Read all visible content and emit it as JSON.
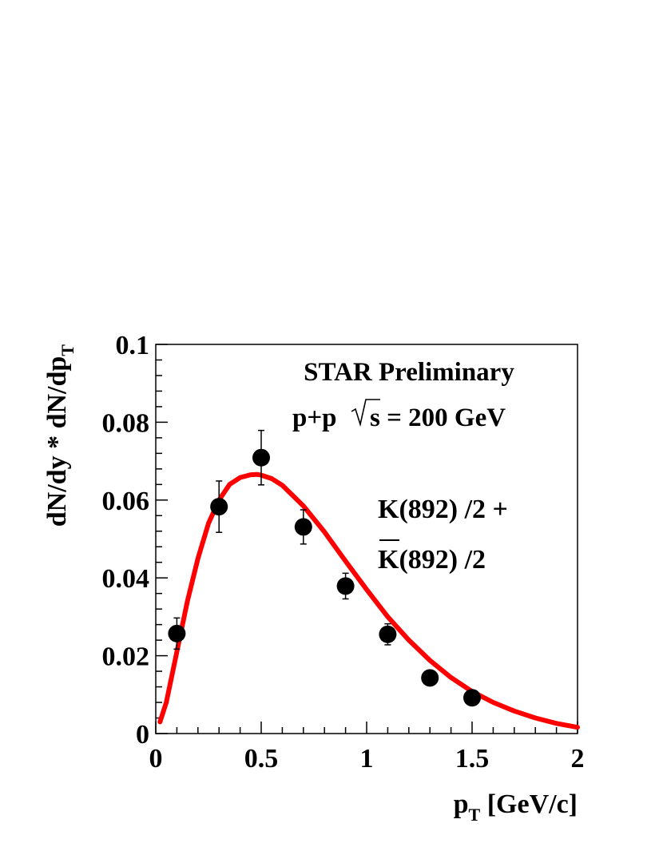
{
  "chart_data": {
    "type": "scatter",
    "title": "",
    "annotations": {
      "experiment": "STAR Preliminary",
      "system_prefix": "p+p",
      "energy": "s = 200 GeV",
      "particle_line1": "K(892) /2 +",
      "particle_line2": "K(892) /2"
    },
    "xlabel": {
      "main": "p",
      "sub": "T",
      "rest": " [GeV/c]"
    },
    "ylabel": {
      "main": "dN/dy * dN/dp",
      "sub": "T"
    },
    "xlim": [
      0,
      2
    ],
    "ylim": [
      0,
      0.1
    ],
    "x_ticks": [
      {
        "value": 0,
        "label": "0"
      },
      {
        "value": 0.5,
        "label": "0.5"
      },
      {
        "value": 1,
        "label": "1"
      },
      {
        "value": 1.5,
        "label": "1.5"
      },
      {
        "value": 2,
        "label": "2"
      }
    ],
    "y_ticks": [
      {
        "value": 0,
        "label": "0"
      },
      {
        "value": 0.02,
        "label": "0.02"
      },
      {
        "value": 0.04,
        "label": "0.04"
      },
      {
        "value": 0.06,
        "label": "0.06"
      },
      {
        "value": 0.08,
        "label": "0.08"
      },
      {
        "value": 0.1,
        "label": "0.1"
      }
    ],
    "series": [
      {
        "x": [
          0.1,
          0.3,
          0.5,
          0.7,
          0.9,
          1.1,
          1.3,
          1.5
        ],
        "y": [
          0.0257,
          0.0583,
          0.0709,
          0.0531,
          0.0379,
          0.0255,
          0.0143,
          0.0092
        ],
        "yerr": [
          0.004,
          0.0066,
          0.007,
          0.0044,
          0.0033,
          0.0027,
          0.001,
          0.0008
        ],
        "marker_color": "#000000"
      }
    ],
    "fit": {
      "x": [
        0.02,
        0.05,
        0.1,
        0.15,
        0.2,
        0.25,
        0.3,
        0.35,
        0.4,
        0.45,
        0.48,
        0.5,
        0.55,
        0.6,
        0.7,
        0.8,
        0.9,
        1.0,
        1.1,
        1.2,
        1.3,
        1.4,
        1.5,
        1.6,
        1.7,
        1.8,
        1.9,
        2.0
      ],
      "y": [
        0.003,
        0.008,
        0.021,
        0.034,
        0.045,
        0.054,
        0.06,
        0.064,
        0.0658,
        0.0665,
        0.0666,
        0.0664,
        0.0655,
        0.0638,
        0.0585,
        0.0518,
        0.0443,
        0.037,
        0.03,
        0.024,
        0.0188,
        0.0144,
        0.0108,
        0.008,
        0.0058,
        0.004,
        0.0026,
        0.0016
      ],
      "color": "#ff0000"
    }
  }
}
